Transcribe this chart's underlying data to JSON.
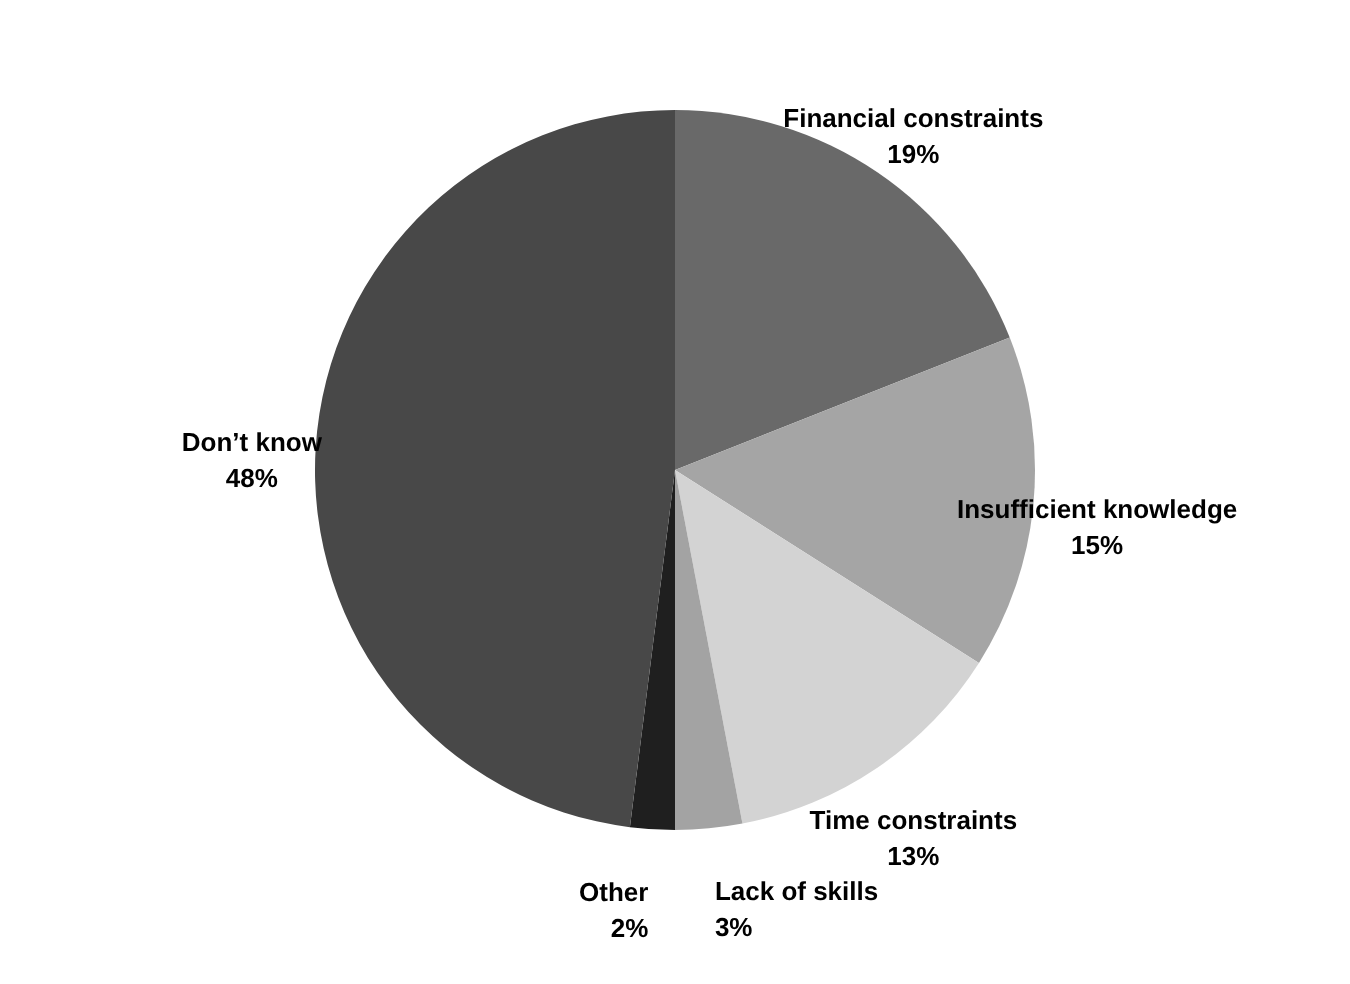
{
  "chart_data": {
    "type": "pie",
    "categories": [
      "Financial constraints",
      "Insufficient knowledge",
      "Time constraints",
      "Lack of skills",
      "Other",
      "Don’t know"
    ],
    "values": [
      19,
      15,
      13,
      3,
      2,
      48
    ],
    "value_labels": [
      "19%",
      "15%",
      "13%",
      "3%",
      "2%",
      "48%"
    ],
    "colors": [
      "#696969",
      "#a5a5a5",
      "#d3d3d3",
      "#a3a3a3",
      "#1f1f1f",
      "#484848"
    ]
  }
}
